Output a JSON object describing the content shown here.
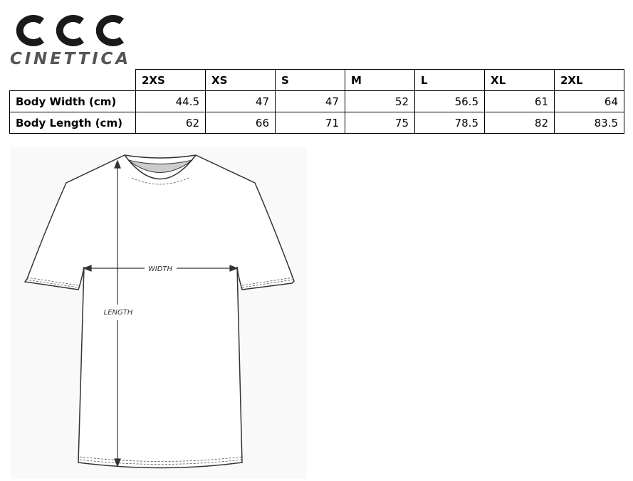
{
  "brand": {
    "logo_mark": "CCC",
    "logo_text": "CINETTICA"
  },
  "size_table": {
    "sizes": [
      "2XS",
      "XS",
      "S",
      "M",
      "L",
      "XL",
      "2XL"
    ],
    "rows": [
      {
        "label": "Body Width (cm)",
        "values": [
          "44.5",
          "47",
          "47",
          "52",
          "56.5",
          "61",
          "64"
        ]
      },
      {
        "label": "Body Length (cm)",
        "values": [
          "62",
          "66",
          "71",
          "75",
          "78.5",
          "82",
          "83.5"
        ]
      }
    ]
  },
  "diagram": {
    "width_label": "WIDTH",
    "length_label": "LENGTH"
  }
}
